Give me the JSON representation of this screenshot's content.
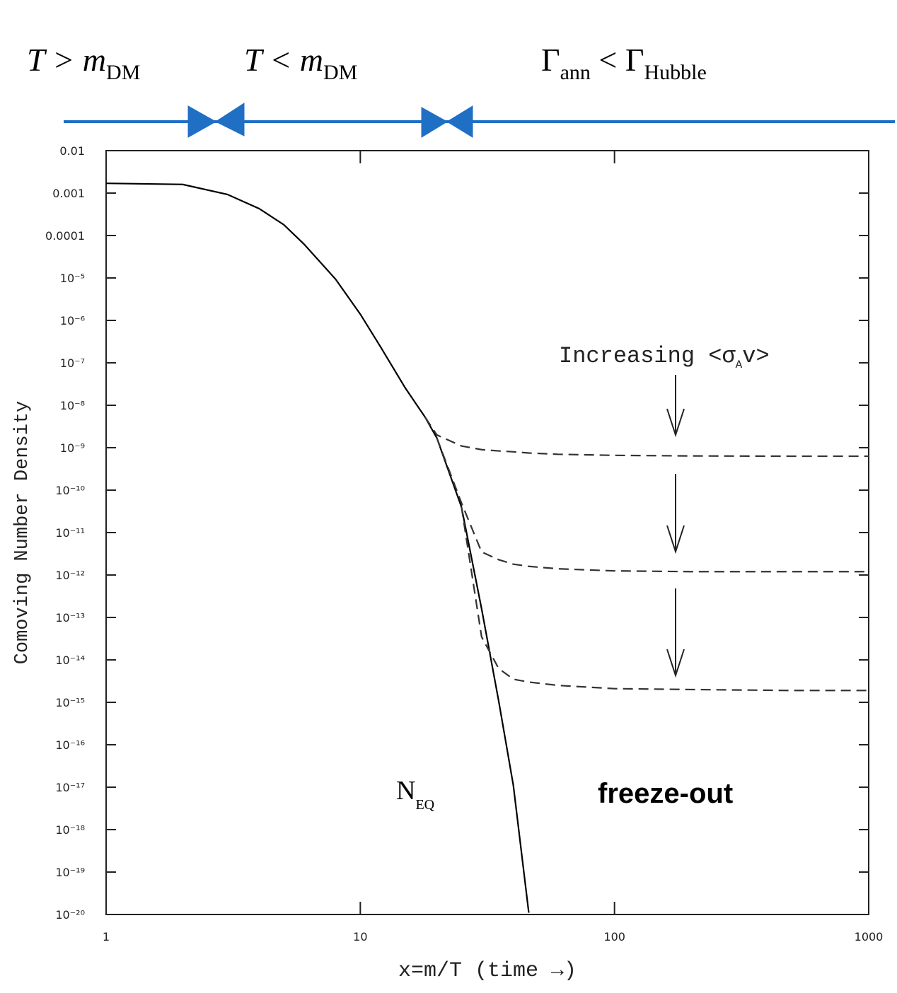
{
  "chart_data": {
    "type": "line",
    "y_label": "Comoving Number Density",
    "x_label": "x=m/T (time →)",
    "log_x": true,
    "log_y": true,
    "xlim": [
      1,
      1000
    ],
    "xticks": [
      1,
      10,
      100,
      1000
    ],
    "ylim": [
      1e-20,
      0.01
    ],
    "yticks": [
      0.01,
      0.001,
      0.0001,
      {
        "value": 1e-05,
        "label": "10⁻⁵"
      },
      {
        "value": 1e-06,
        "label": "10⁻⁶"
      },
      {
        "value": 1e-07,
        "label": "10⁻⁷"
      },
      {
        "value": 1e-08,
        "label": "10⁻⁸"
      },
      {
        "value": 1e-09,
        "label": "10⁻⁹"
      },
      {
        "value": 1e-10,
        "label": "10⁻¹⁰"
      },
      {
        "value": 1e-11,
        "label": "10⁻¹¹"
      },
      {
        "value": 1e-12,
        "label": "10⁻¹²"
      },
      {
        "value": 1e-13,
        "label": "10⁻¹³"
      },
      {
        "value": 1e-14,
        "label": "10⁻¹⁴"
      },
      {
        "value": 1e-15,
        "label": "10⁻¹⁵"
      },
      {
        "value": 1e-16,
        "label": "10⁻¹⁶"
      },
      {
        "value": 1e-17,
        "label": "10⁻¹⁷"
      },
      {
        "value": 1e-18,
        "label": "10⁻¹⁸"
      },
      {
        "value": 1e-19,
        "label": "10⁻¹⁹"
      },
      {
        "value": 1e-20,
        "label": "10⁻²⁰"
      }
    ],
    "x": [
      1,
      2,
      3,
      4,
      5,
      6,
      8,
      10,
      12,
      15,
      18,
      20,
      25,
      30,
      35,
      40,
      46,
      60,
      100,
      200,
      500,
      1000
    ],
    "series": [
      {
        "color": "#000000",
        "line_style": "solid",
        "values": [
          0.0017,
          0.0016,
          0.00093,
          0.00043,
          0.00018,
          6.3e-05,
          9.3e-06,
          1.4e-06,
          2.4e-07,
          2.6e-08,
          5.2e-09,
          1.7e-09,
          4e-11,
          1.6e-13,
          1.1e-15,
          1.1e-17,
          1.1e-20,
          null,
          null,
          null,
          null,
          null
        ]
      },
      {
        "color": "#333333",
        "line_style": "dashed",
        "values": [
          null,
          null,
          null,
          null,
          null,
          null,
          null,
          null,
          null,
          null,
          5.2e-09,
          2e-09,
          1.1e-09,
          9e-10,
          8.4e-10,
          8e-10,
          7.5e-10,
          7e-10,
          6.6e-10,
          6.4e-10,
          6.3e-10,
          6.3e-10
        ]
      },
      {
        "color": "#333333",
        "line_style": "dashed",
        "values": [
          null,
          null,
          null,
          null,
          null,
          null,
          null,
          null,
          null,
          null,
          null,
          1.7e-09,
          5e-11,
          3.5e-12,
          2.3e-12,
          1.8e-12,
          1.6e-12,
          1.4e-12,
          1.25e-12,
          1.2e-12,
          1.2e-12,
          1.2e-12
        ]
      },
      {
        "color": "#333333",
        "line_style": "dashed",
        "values": [
          null,
          null,
          null,
          null,
          null,
          null,
          null,
          null,
          null,
          null,
          null,
          null,
          4e-11,
          3.5e-14,
          6.3e-15,
          3.5e-15,
          3e-15,
          2.5e-15,
          2.1e-15,
          2e-15,
          1.9e-15,
          1.9e-15
        ]
      }
    ],
    "annotation_increasing": [
      "Increasing <σ",
      "A",
      "v>"
    ],
    "annotation_neq": [
      "N",
      "EQ"
    ],
    "annotation_freeze": "freeze-out",
    "top_labels": [
      [
        "T > m",
        "DM"
      ],
      [
        "T < m",
        "DM"
      ],
      [
        "Γ",
        "ann",
        " < Γ",
        "Hubble"
      ]
    ]
  }
}
